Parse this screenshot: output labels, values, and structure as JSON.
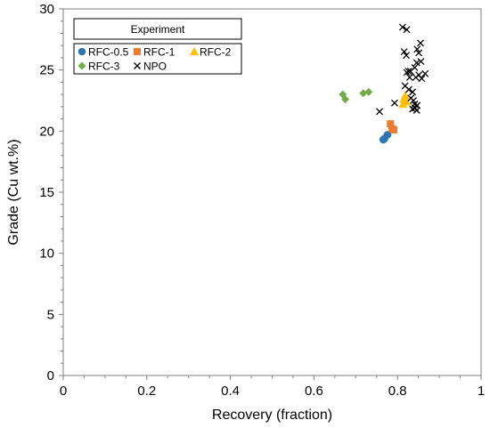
{
  "chart_data": {
    "type": "scatter",
    "title": "",
    "xlabel": "Recovery (fraction)",
    "ylabel": "Grade (Cu wt.%)",
    "xlim": [
      0,
      1
    ],
    "ylim": [
      0,
      30
    ],
    "x_ticks": [
      0,
      0.2,
      0.4,
      0.6,
      0.8,
      1
    ],
    "x_tick_labels": [
      "0",
      "0.2",
      "0.4",
      "0.6",
      "0.8",
      "1"
    ],
    "y_ticks": [
      0,
      5,
      10,
      15,
      20,
      25,
      30
    ],
    "y_tick_labels": [
      "0",
      "5",
      "10",
      "15",
      "20",
      "25",
      "30"
    ],
    "grid": false,
    "legend": {
      "title": "Experiment",
      "placement": "top-left"
    },
    "series": [
      {
        "name": "RFC-0.5",
        "marker": "circle",
        "color": "#2E75B6",
        "points": [
          [
            0.766,
            19.3
          ],
          [
            0.769,
            19.4
          ],
          [
            0.776,
            19.7
          ]
        ]
      },
      {
        "name": "RFC-1",
        "marker": "square",
        "color": "#ED7D31",
        "points": [
          [
            0.783,
            20.6
          ],
          [
            0.787,
            20.2
          ],
          [
            0.791,
            20.1
          ]
        ]
      },
      {
        "name": "RFC-2",
        "marker": "triangle",
        "color": "#FFC000",
        "points": [
          [
            0.813,
            22.2
          ],
          [
            0.815,
            22.6
          ],
          [
            0.818,
            22.9
          ],
          [
            0.821,
            22.4
          ]
        ]
      },
      {
        "name": "RFC-3",
        "marker": "diamond",
        "color": "#70AD47",
        "points": [
          [
            0.669,
            23.0
          ],
          [
            0.675,
            22.6
          ],
          [
            0.718,
            23.1
          ],
          [
            0.731,
            23.2
          ]
        ]
      },
      {
        "name": "NPO",
        "marker": "x",
        "color": "#000000",
        "points": [
          [
            0.757,
            21.6
          ],
          [
            0.793,
            22.3
          ],
          [
            0.812,
            28.5
          ],
          [
            0.822,
            28.3
          ],
          [
            0.816,
            26.5
          ],
          [
            0.821,
            26.2
          ],
          [
            0.826,
            24.9
          ],
          [
            0.831,
            24.9
          ],
          [
            0.822,
            24.8
          ],
          [
            0.829,
            24.4
          ],
          [
            0.818,
            23.7
          ],
          [
            0.827,
            23.4
          ],
          [
            0.836,
            23.2
          ],
          [
            0.832,
            22.7
          ],
          [
            0.838,
            22.5
          ],
          [
            0.841,
            22.2
          ],
          [
            0.836,
            21.8
          ],
          [
            0.842,
            21.9
          ],
          [
            0.847,
            22.1
          ],
          [
            0.844,
            24.4
          ],
          [
            0.851,
            24.6
          ],
          [
            0.858,
            24.3
          ],
          [
            0.866,
            24.7
          ],
          [
            0.841,
            25.2
          ],
          [
            0.846,
            25.6
          ],
          [
            0.856,
            25.7
          ],
          [
            0.851,
            26.4
          ],
          [
            0.847,
            26.7
          ],
          [
            0.855,
            27.2
          ],
          [
            0.846,
            21.7
          ]
        ]
      }
    ]
  }
}
